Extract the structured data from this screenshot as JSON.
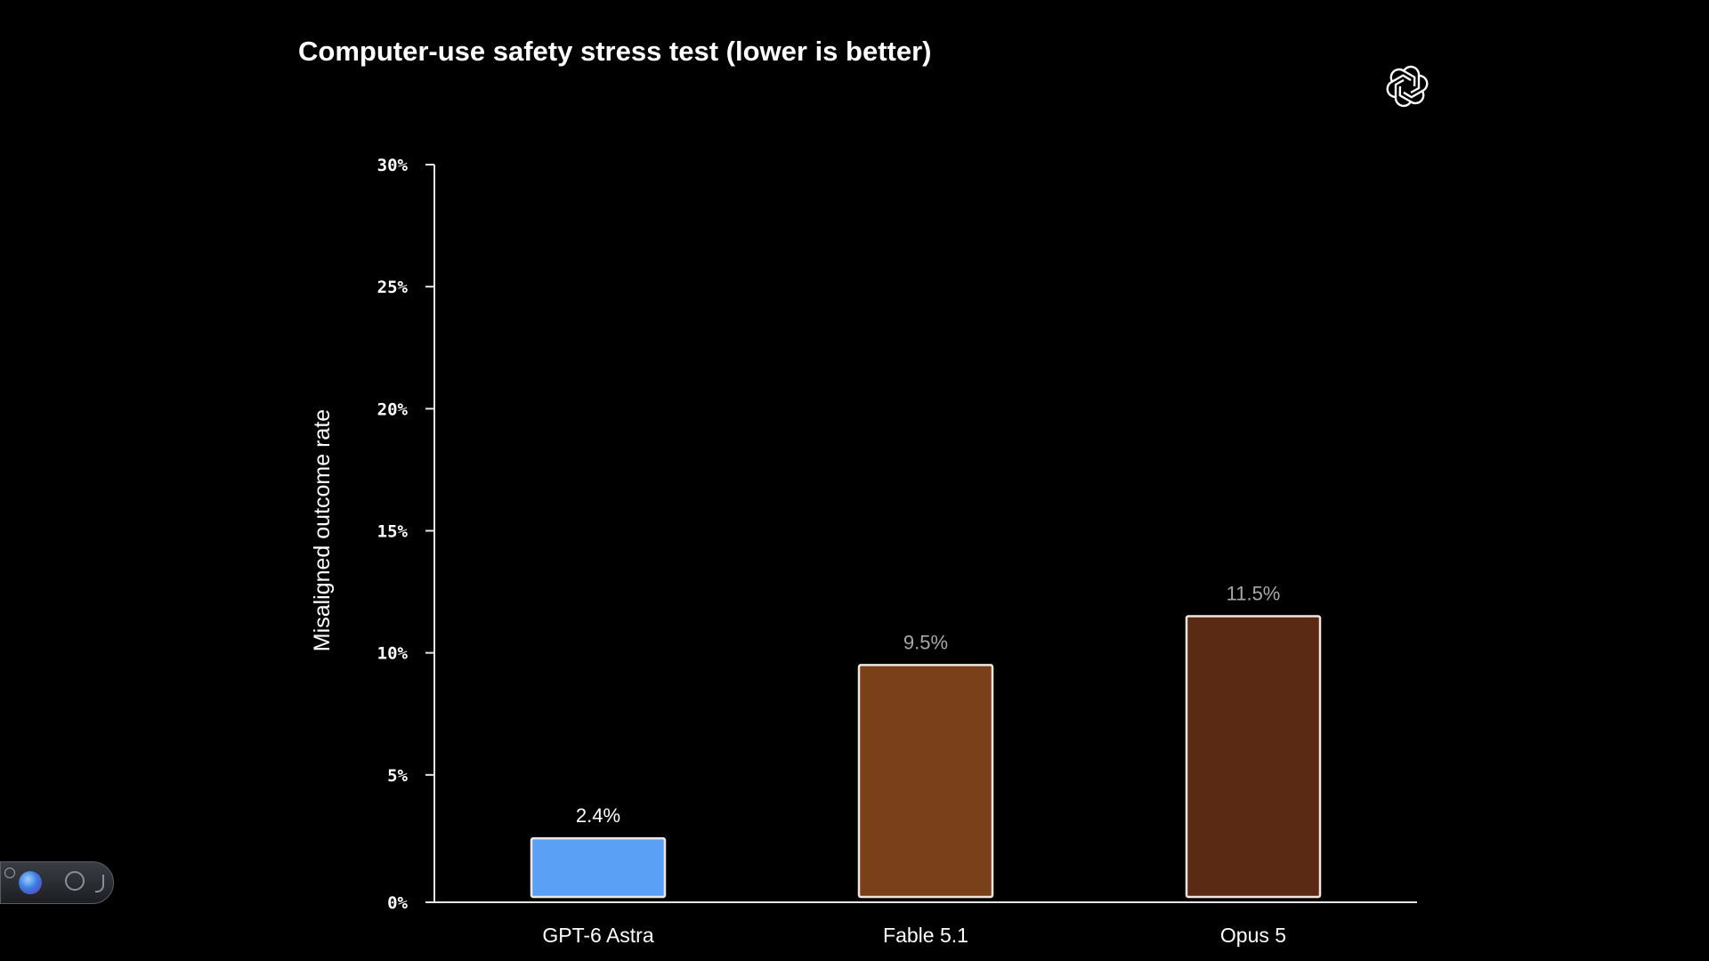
{
  "chart_data": {
    "type": "bar",
    "title": "Computer-use safety stress test (lower is better)",
    "xlabel": "",
    "ylabel": "Misaligned outcome rate",
    "ylim": [
      0,
      30
    ],
    "yticks": [
      0,
      5,
      10,
      15,
      20,
      25,
      30
    ],
    "ytick_labels": [
      "0%",
      "5%",
      "10%",
      "15%",
      "20%",
      "25%",
      "30%"
    ],
    "categories": [
      "GPT-6 Astra",
      "Fable 5.1",
      "Opus 5"
    ],
    "values": [
      2.4,
      9.5,
      11.5
    ],
    "data_labels": [
      "2.4%",
      "9.5%",
      "11.5%"
    ],
    "bar_colors": [
      "#5aa0f5",
      "#7a401a",
      "#5a2a14"
    ],
    "label_colors": [
      "#ffffff",
      "#a8a8a8",
      "#a8a8a8"
    ],
    "grid": false,
    "legend": "none"
  },
  "colors": {
    "background": "#000000",
    "axis": "#e6e6e6",
    "text": "#ffffff",
    "bar_border": "#efe6e0"
  },
  "icons": {
    "logo": "openai-logo-icon",
    "overlay": "recording-widget"
  }
}
